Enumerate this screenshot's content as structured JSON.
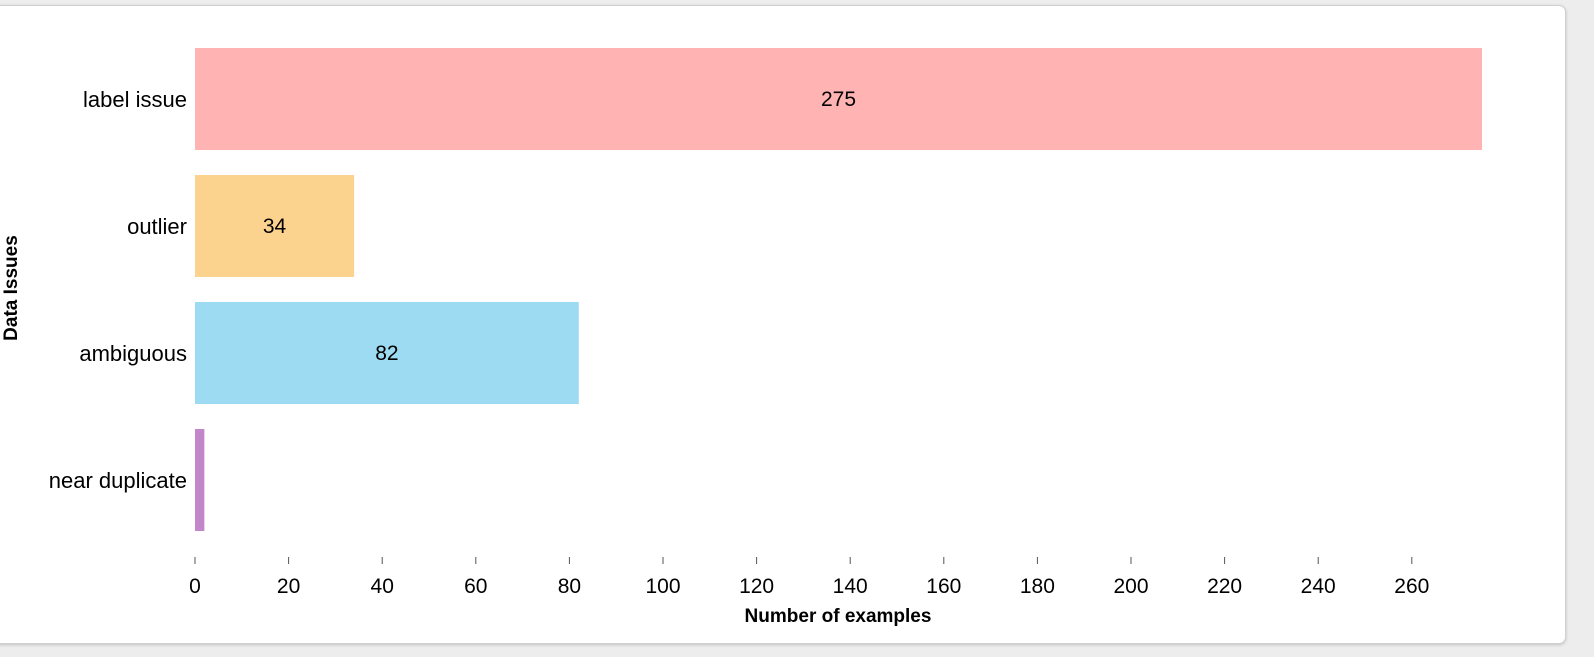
{
  "chart_data": {
    "type": "bar",
    "orientation": "horizontal",
    "categories": [
      "label issue",
      "outlier",
      "ambiguous",
      "near duplicate"
    ],
    "values": [
      275,
      34,
      82,
      2
    ],
    "value_labels": [
      "275",
      "34",
      "82",
      ""
    ],
    "colors": [
      "#ffb3b3",
      "#fbd38f",
      "#9cdbf1",
      "#c387c9"
    ],
    "xlabel": "Number of examples",
    "ylabel": "Data Issues",
    "xlim": [
      0,
      275
    ],
    "xticks": [
      0,
      20,
      40,
      60,
      80,
      100,
      120,
      140,
      160,
      180,
      200,
      220,
      240,
      260
    ],
    "grid": false
  }
}
